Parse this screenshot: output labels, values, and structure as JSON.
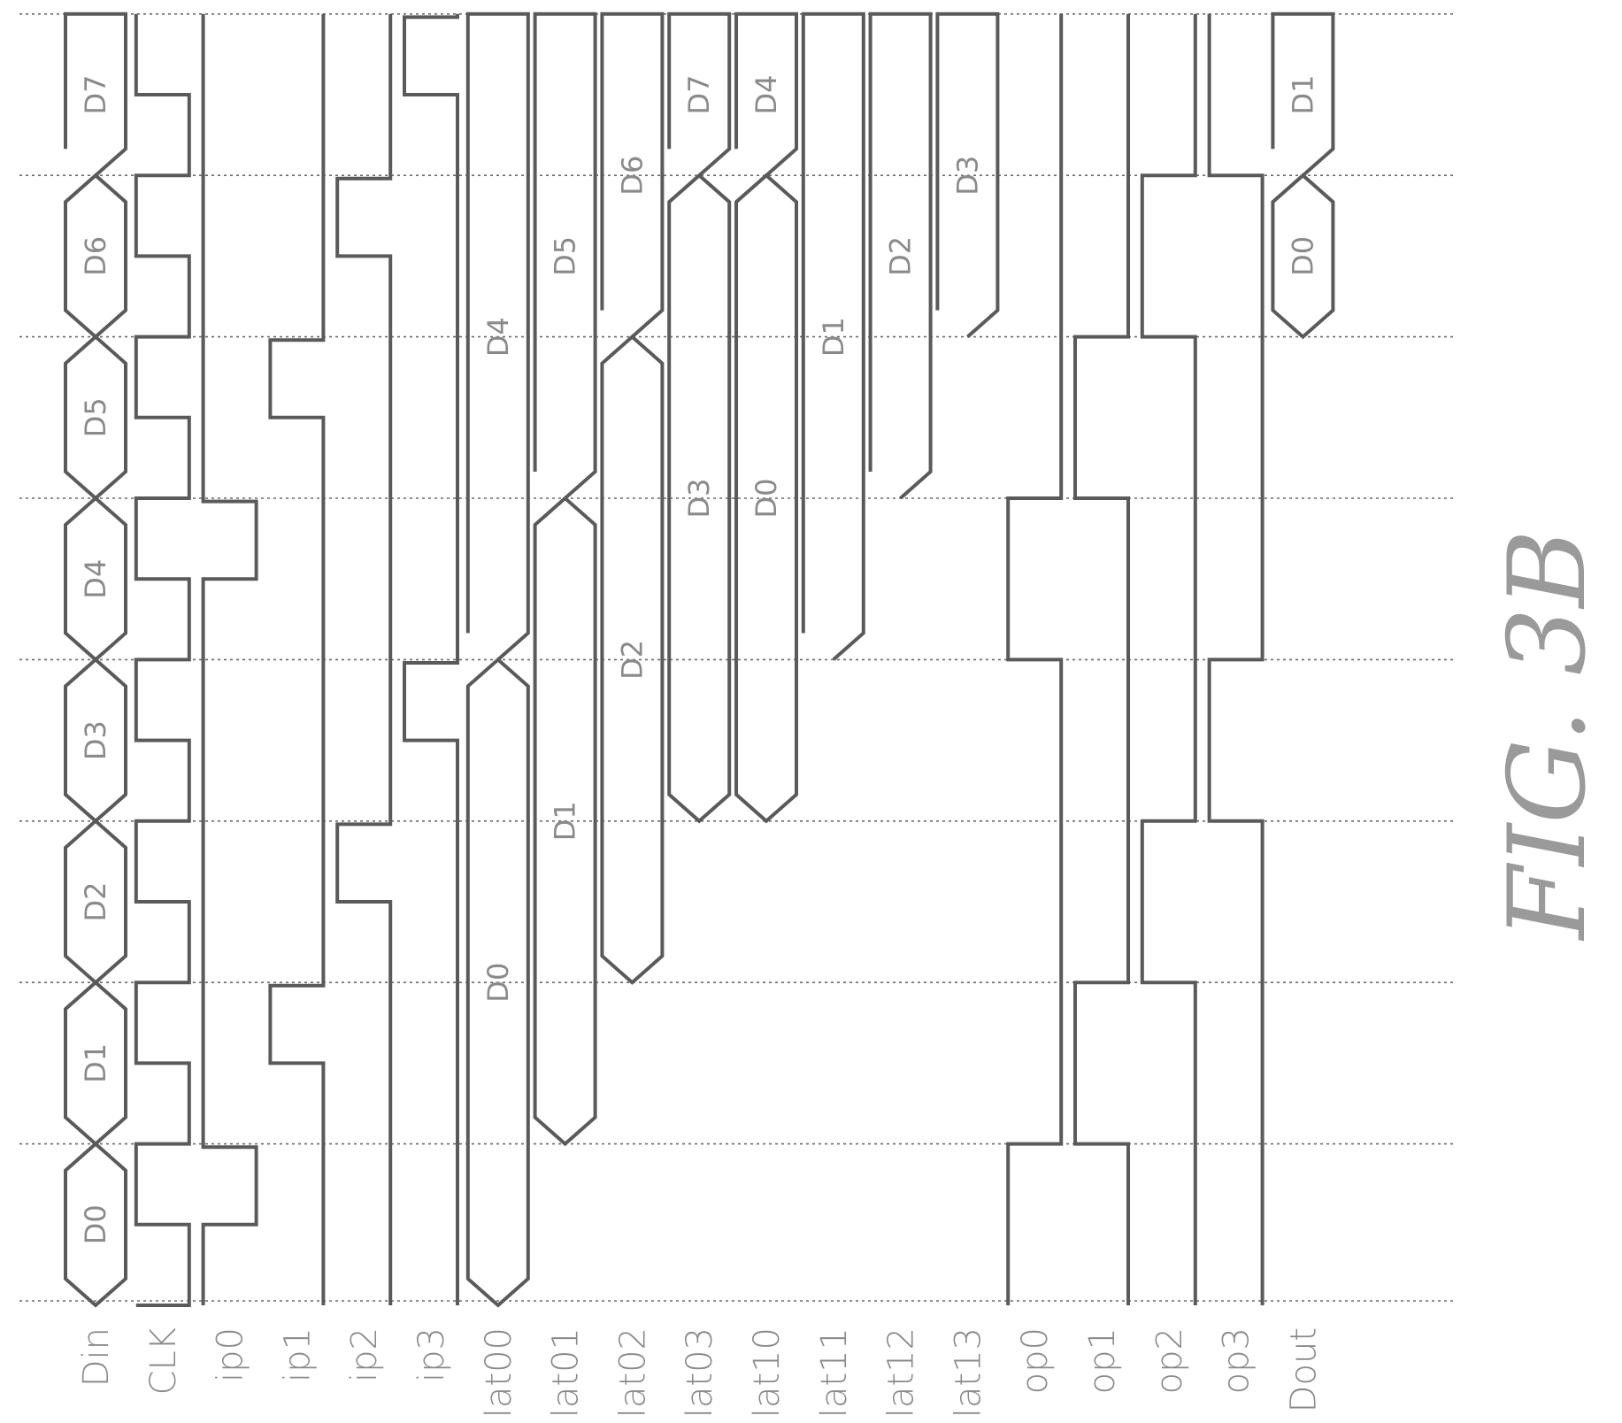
{
  "figure_label": "FIG. 3B",
  "clock_cycles": 8,
  "signals": [
    {
      "name": "Din",
      "type": "bus",
      "segments": [
        {
          "from": 0,
          "to": 1,
          "label": "D0"
        },
        {
          "from": 1,
          "to": 2,
          "label": "D1"
        },
        {
          "from": 2,
          "to": 3,
          "label": "D2"
        },
        {
          "from": 3,
          "to": 4,
          "label": "D3"
        },
        {
          "from": 4,
          "to": 5,
          "label": "D4"
        },
        {
          "from": 5,
          "to": 6,
          "label": "D5"
        },
        {
          "from": 6,
          "to": 7,
          "label": "D6"
        },
        {
          "from": 7,
          "to": 8,
          "label": "D7"
        }
      ]
    },
    {
      "name": "CLK",
      "type": "digital",
      "edges": [
        0,
        0.5,
        1,
        1.5,
        2,
        2.5,
        3,
        3.5,
        4,
        4.5,
        5,
        5.5,
        6,
        6.5,
        7,
        7.5
      ],
      "initial": 1
    },
    {
      "name": "ip0",
      "type": "digital",
      "edges": [
        0.5,
        0.98,
        4.5,
        4.98
      ],
      "initial": 1
    },
    {
      "name": "ip1",
      "type": "digital",
      "edges": [
        1.5,
        1.98,
        5.5,
        5.98
      ],
      "initial": 0
    },
    {
      "name": "ip2",
      "type": "digital",
      "edges": [
        2.5,
        2.98,
        6.5,
        6.98
      ],
      "initial": 0
    },
    {
      "name": "ip3",
      "type": "digital",
      "edges": [
        3.5,
        3.98,
        7.5,
        7.98
      ],
      "initial": 0
    },
    {
      "name": "lat00",
      "type": "bus",
      "segments": [
        {
          "from": 0,
          "to": 4,
          "label": "D0"
        },
        {
          "from": 4,
          "to": 8,
          "label": "D4"
        }
      ]
    },
    {
      "name": "lat01",
      "type": "bus",
      "segments": [
        {
          "from": 1,
          "to": 5,
          "label": "D1"
        },
        {
          "from": 5,
          "to": 8,
          "label": "D5"
        }
      ]
    },
    {
      "name": "lat02",
      "type": "bus",
      "segments": [
        {
          "from": 2,
          "to": 6,
          "label": "D2"
        },
        {
          "from": 6,
          "to": 8,
          "label": "D6"
        }
      ]
    },
    {
      "name": "lat03",
      "type": "bus",
      "segments": [
        {
          "from": 3,
          "to": 7,
          "label": "D3"
        },
        {
          "from": 7,
          "to": 8,
          "label": "D7"
        }
      ]
    },
    {
      "name": "lat10",
      "type": "bus",
      "segments": [
        {
          "from": 3,
          "to": 7,
          "label": "D0"
        },
        {
          "from": 7,
          "to": 8,
          "label": "D4"
        }
      ]
    },
    {
      "name": "lat11",
      "type": "bus",
      "segments": [
        {
          "from": 4,
          "to": 8,
          "label": "D1"
        }
      ]
    },
    {
      "name": "lat12",
      "type": "bus",
      "segments": [
        {
          "from": 5,
          "to": 8,
          "label": "D2"
        }
      ]
    },
    {
      "name": "lat13",
      "type": "bus",
      "segments": [
        {
          "from": 6,
          "to": 8,
          "label": "D3"
        }
      ]
    },
    {
      "name": "op0",
      "type": "digital",
      "edges": [
        1,
        4,
        5
      ],
      "initial": 1
    },
    {
      "name": "op1",
      "type": "digital",
      "edges": [
        1,
        2,
        5,
        6
      ],
      "initial": 0
    },
    {
      "name": "op2",
      "type": "digital",
      "edges": [
        2,
        3,
        6,
        7
      ],
      "initial": 0
    },
    {
      "name": "op3",
      "type": "digital",
      "edges": [
        3,
        4,
        7
      ],
      "initial": 0
    },
    {
      "name": "Dout",
      "type": "bus",
      "segments": [
        {
          "from": 6,
          "to": 7,
          "label": "D0"
        },
        {
          "from": 7,
          "to": 8,
          "label": "D1"
        }
      ]
    }
  ]
}
